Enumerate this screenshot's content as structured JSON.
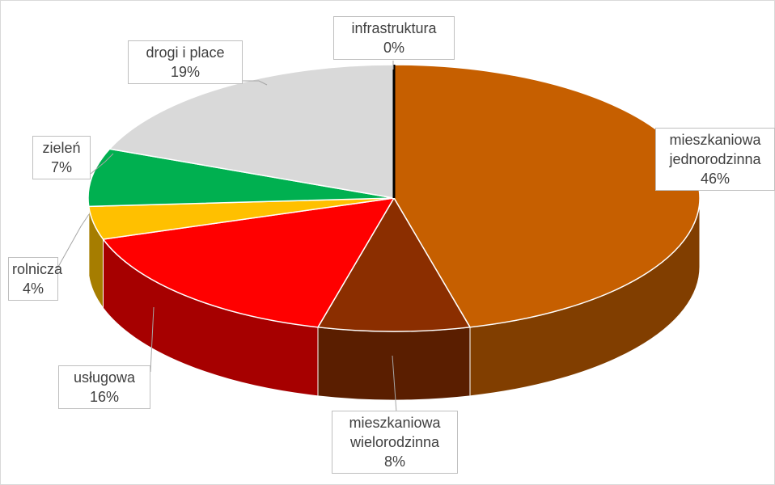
{
  "chart_data": {
    "type": "pie3d",
    "categories": [
      "mieszkaniowa jednorodzinna",
      "mieszkaniowa wielorodzinna",
      "usługowa",
      "rolnicza",
      "zieleń",
      "drogi i place",
      "infrastruktura"
    ],
    "values": [
      46,
      8,
      16,
      4,
      7,
      19,
      0
    ],
    "value_labels": [
      "46%",
      "8%",
      "16%",
      "4%",
      "7%",
      "19%",
      "0%"
    ],
    "colors": [
      "#c65f00",
      "#8b2e00",
      "#ff0000",
      "#ffc000",
      "#00b050",
      "#d9d9d9",
      "#000000"
    ]
  }
}
